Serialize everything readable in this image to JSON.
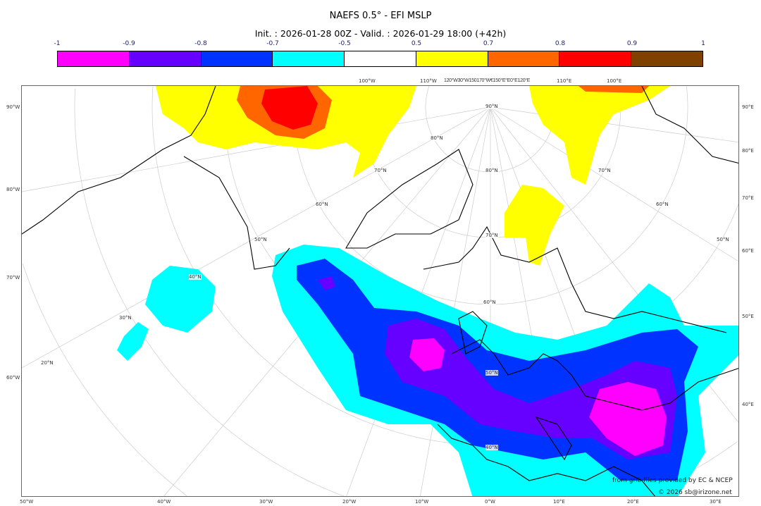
{
  "title": "NAEFS 0.5° - EFI MSLP",
  "subtitle": "Init. : 2026-01-28 00Z - Valid. : 2026-01-29 18:00 (+42h)",
  "colorbar": {
    "labels": [
      "-1",
      "-0.9",
      "-0.8",
      "-0.7",
      "-0.5",
      "0.5",
      "0.7",
      "0.8",
      "0.9",
      "1"
    ],
    "colors": [
      "#ff00ff",
      "#6600ff",
      "#0033ff",
      "#00ffff",
      "#ffffff",
      "#ffff00",
      "#ff6600",
      "#ff0000",
      "#804000"
    ]
  },
  "axes": {
    "left": [
      "90°W",
      "80°W",
      "70°W",
      "60°W"
    ],
    "right": [
      "90°E",
      "80°E",
      "70°E",
      "60°E",
      "50°E",
      "40°E"
    ],
    "bottom": [
      "50°W",
      "40°W",
      "30°W",
      "20°W",
      "10°W",
      "0°W",
      "10°E",
      "20°E",
      "30°E"
    ],
    "top": [
      "100°W",
      "110°W",
      "120°W30°W150170°W€150°E°E0°E120°E",
      "110°E",
      "100°E"
    ]
  },
  "latitude_labels": [
    "90°N",
    "80°N",
    "70°N",
    "60°N",
    "50°N",
    "40°N",
    "80°N",
    "70°N",
    "60°N",
    "50°N",
    "40°N",
    "30°N",
    "20°N",
    "70°N",
    "60°N",
    "50°N"
  ],
  "credits": {
    "line1": "from grib files provided by EC & NCEP",
    "line2": "© 2026 sb@irizone.net"
  }
}
